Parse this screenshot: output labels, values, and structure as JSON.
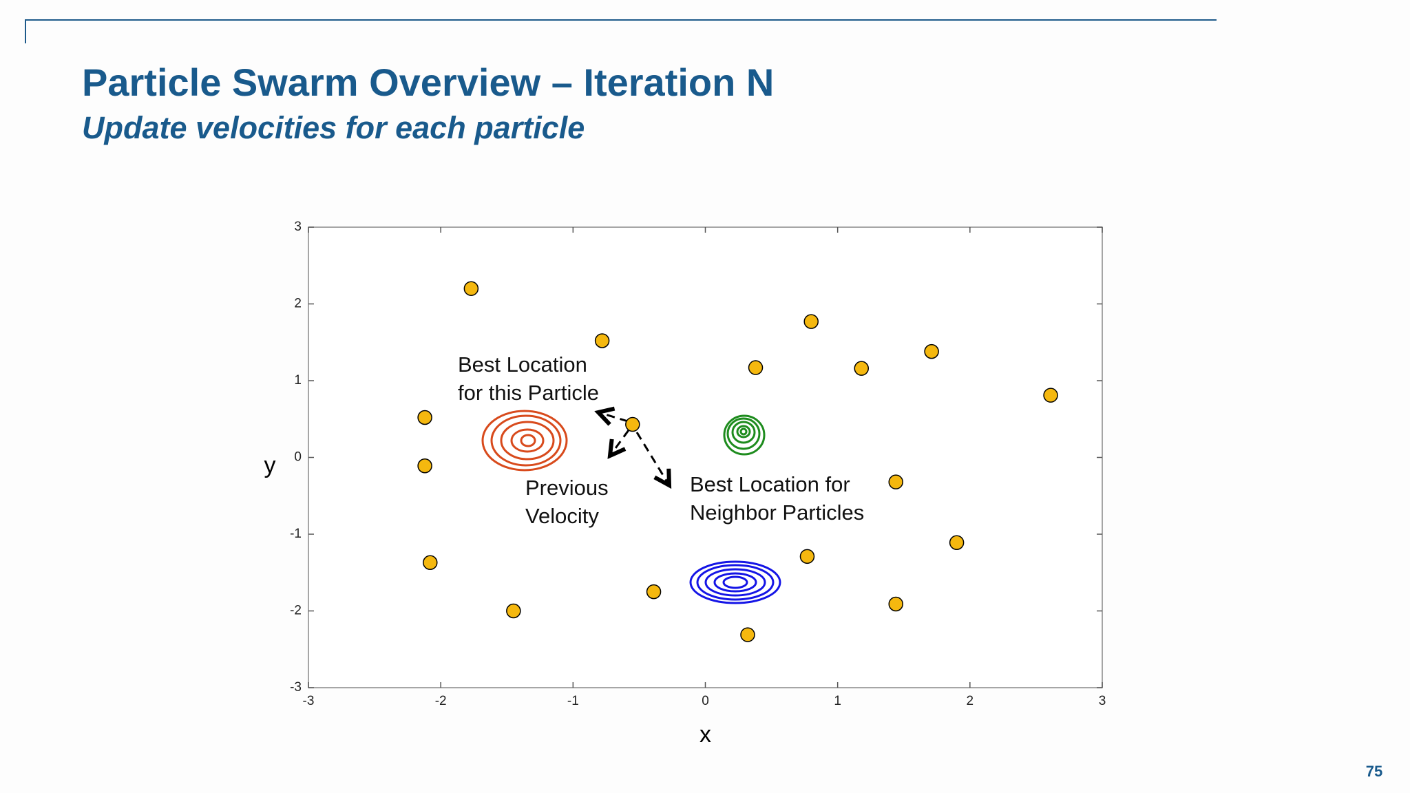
{
  "slide": {
    "title": "Particle Swarm Overview – Iteration N",
    "subtitle": "Update velocities for each particle",
    "page_number": "75"
  },
  "chart_data": {
    "type": "scatter",
    "x_label": "x",
    "y_label": "y",
    "x": [
      -1.77,
      -0.78,
      -2.12,
      -2.12,
      -2.08,
      -1.45,
      -0.55,
      -0.39,
      0.38,
      0.8,
      1.18,
      1.71,
      2.61,
      1.44,
      1.9,
      0.77,
      1.44,
      0.32
    ],
    "values": [
      2.2,
      1.52,
      0.52,
      -0.11,
      -1.37,
      -2.0,
      0.43,
      -1.75,
      1.17,
      1.77,
      1.16,
      1.38,
      0.81,
      -0.32,
      -1.11,
      -1.29,
      -1.91,
      -2.31
    ],
    "color": "#f5b80f",
    "xlim": [
      -3,
      3
    ],
    "ylim": [
      -3,
      3
    ],
    "xticks": [
      -3,
      -2,
      -1,
      0,
      1,
      2,
      3
    ],
    "yticks": [
      -3,
      -2,
      -1,
      0,
      1,
      2,
      3
    ],
    "annotations": [
      {
        "lines": [
          "Best Location",
          "for this Particle"
        ]
      },
      {
        "lines": [
          "Previous",
          "Velocity"
        ]
      },
      {
        "lines": [
          "Best Location for",
          "Neighbor Particles"
        ]
      }
    ]
  }
}
